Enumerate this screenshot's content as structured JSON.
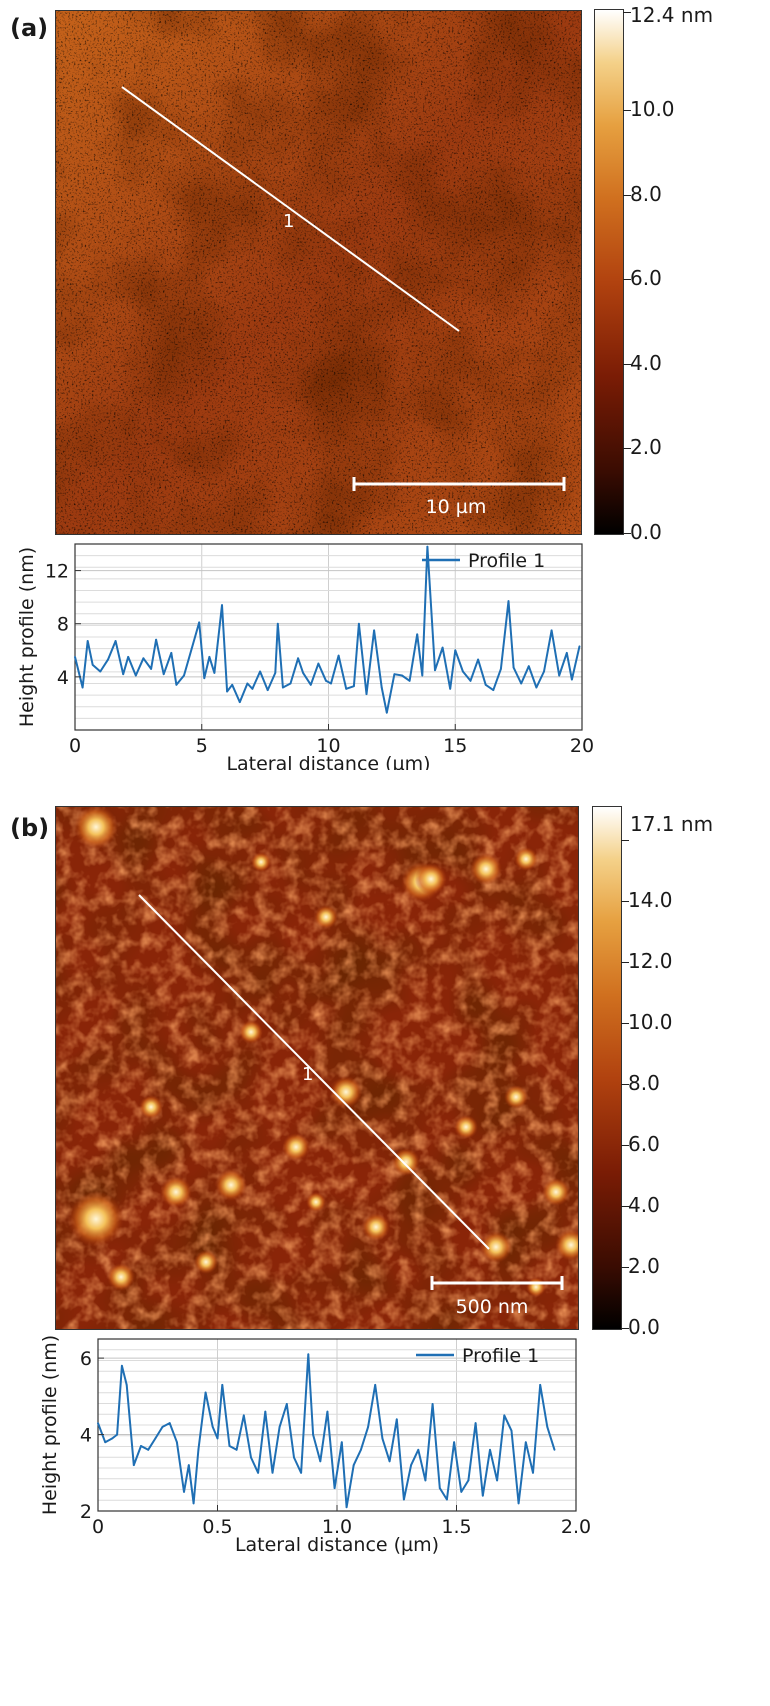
{
  "panels": [
    {
      "label": "(a)",
      "image": {
        "scale_bar_label": "10 µm",
        "line_label": "1",
        "colorbar": {
          "max_label": "12.4 nm",
          "ticks": [
            "10.0",
            "8.0",
            "6.0",
            "4.0",
            "2.0",
            "0.0"
          ],
          "max": 12.4
        }
      },
      "chart_data": {
        "type": "line",
        "xlabel": "Lateral distance (µm)",
        "ylabel": "Height profile (nm)",
        "xlim": [
          0,
          20
        ],
        "ylim": [
          0,
          14
        ],
        "xticks": [
          0,
          5,
          10,
          15,
          20
        ],
        "yticks": [
          4,
          8,
          12
        ],
        "grid": true,
        "legend": "top-right",
        "series": [
          {
            "name": "Profile 1",
            "color": "#1f6fb4",
            "x": [
              0,
              0.3,
              0.5,
              0.7,
              1.0,
              1.3,
              1.6,
              1.9,
              2.1,
              2.4,
              2.7,
              3.0,
              3.2,
              3.5,
              3.8,
              4.0,
              4.3,
              4.6,
              4.9,
              5.1,
              5.3,
              5.5,
              5.8,
              6.0,
              6.2,
              6.5,
              6.8,
              7.0,
              7.3,
              7.6,
              7.9,
              8.0,
              8.2,
              8.5,
              8.8,
              9.0,
              9.3,
              9.6,
              9.9,
              10.1,
              10.4,
              10.7,
              11.0,
              11.2,
              11.5,
              11.8,
              12.1,
              12.3,
              12.6,
              12.9,
              13.2,
              13.5,
              13.7,
              13.9,
              14.2,
              14.5,
              14.8,
              15.0,
              15.3,
              15.6,
              15.9,
              16.2,
              16.5,
              16.8,
              17.1,
              17.3,
              17.6,
              17.9,
              18.2,
              18.5,
              18.8,
              19.1,
              19.4,
              19.6,
              19.9
            ],
            "y": [
              5.5,
              3.2,
              6.7,
              4.9,
              4.4,
              5.3,
              6.7,
              4.2,
              5.5,
              4.1,
              5.4,
              4.6,
              6.8,
              4.2,
              5.8,
              3.4,
              4.1,
              6.1,
              8.1,
              3.9,
              5.5,
              4.3,
              9.4,
              2.9,
              3.4,
              2.1,
              3.5,
              3.1,
              4.4,
              3.0,
              4.3,
              8.0,
              3.2,
              3.5,
              5.4,
              4.3,
              3.4,
              5.0,
              3.7,
              3.5,
              5.6,
              3.1,
              3.3,
              8.0,
              2.7,
              7.5,
              3.2,
              1.3,
              4.2,
              4.1,
              3.7,
              7.2,
              4.1,
              13.8,
              4.5,
              6.2,
              3.1,
              6.0,
              4.4,
              3.7,
              5.3,
              3.4,
              3.0,
              4.6,
              9.7,
              4.7,
              3.5,
              4.8,
              3.2,
              4.4,
              7.5,
              4.1,
              5.8,
              3.8,
              6.3
            ]
          }
        ]
      }
    },
    {
      "label": "(b)",
      "image": {
        "scale_bar_label": "500 nm",
        "line_label": "1",
        "colorbar": {
          "max_label": "17.1 nm",
          "ticks": [
            "14.0",
            "12.0",
            "10.0",
            "8.0",
            "6.0",
            "4.0",
            "2.0",
            "0.0"
          ],
          "max": 17.1
        }
      },
      "chart_data": {
        "type": "line",
        "xlabel": "Lateral distance (µm)",
        "ylabel": "Height profile (nm)",
        "xlim": [
          0,
          2.0
        ],
        "ylim": [
          2,
          6.5
        ],
        "xticks": [
          0,
          0.5,
          1.0,
          1.5,
          2.0
        ],
        "xtick_labels": [
          "0",
          "0.5",
          "1.0",
          "1.5",
          "2.0"
        ],
        "yticks": [
          2,
          4,
          6
        ],
        "grid": true,
        "legend": "top-right",
        "series": [
          {
            "name": "Profile 1",
            "color": "#1f6fb4",
            "x": [
              0,
              0.03,
              0.06,
              0.08,
              0.1,
              0.12,
              0.15,
              0.18,
              0.21,
              0.24,
              0.27,
              0.3,
              0.33,
              0.36,
              0.38,
              0.4,
              0.42,
              0.45,
              0.48,
              0.5,
              0.52,
              0.55,
              0.58,
              0.61,
              0.64,
              0.67,
              0.7,
              0.73,
              0.76,
              0.79,
              0.82,
              0.85,
              0.88,
              0.9,
              0.93,
              0.96,
              0.99,
              1.02,
              1.04,
              1.07,
              1.1,
              1.13,
              1.16,
              1.19,
              1.22,
              1.25,
              1.28,
              1.31,
              1.34,
              1.37,
              1.4,
              1.43,
              1.46,
              1.49,
              1.52,
              1.55,
              1.58,
              1.61,
              1.64,
              1.67,
              1.7,
              1.73,
              1.76,
              1.79,
              1.82,
              1.85,
              1.88,
              1.91
            ],
            "y": [
              4.3,
              3.8,
              3.9,
              4.0,
              5.8,
              5.3,
              3.2,
              3.7,
              3.6,
              3.9,
              4.2,
              4.3,
              3.8,
              2.5,
              3.2,
              2.2,
              3.6,
              5.1,
              4.2,
              3.9,
              5.3,
              3.7,
              3.6,
              4.5,
              3.4,
              3.0,
              4.6,
              3.0,
              4.2,
              4.8,
              3.4,
              3.0,
              6.1,
              4.0,
              3.3,
              4.6,
              2.6,
              3.8,
              2.1,
              3.2,
              3.6,
              4.2,
              5.3,
              3.9,
              3.3,
              4.4,
              2.3,
              3.2,
              3.6,
              2.8,
              4.8,
              2.6,
              2.3,
              3.8,
              2.5,
              2.8,
              4.3,
              2.4,
              3.6,
              2.8,
              4.5,
              4.1,
              2.2,
              3.8,
              3.0,
              5.3,
              4.2,
              3.6
            ]
          }
        ]
      }
    }
  ]
}
